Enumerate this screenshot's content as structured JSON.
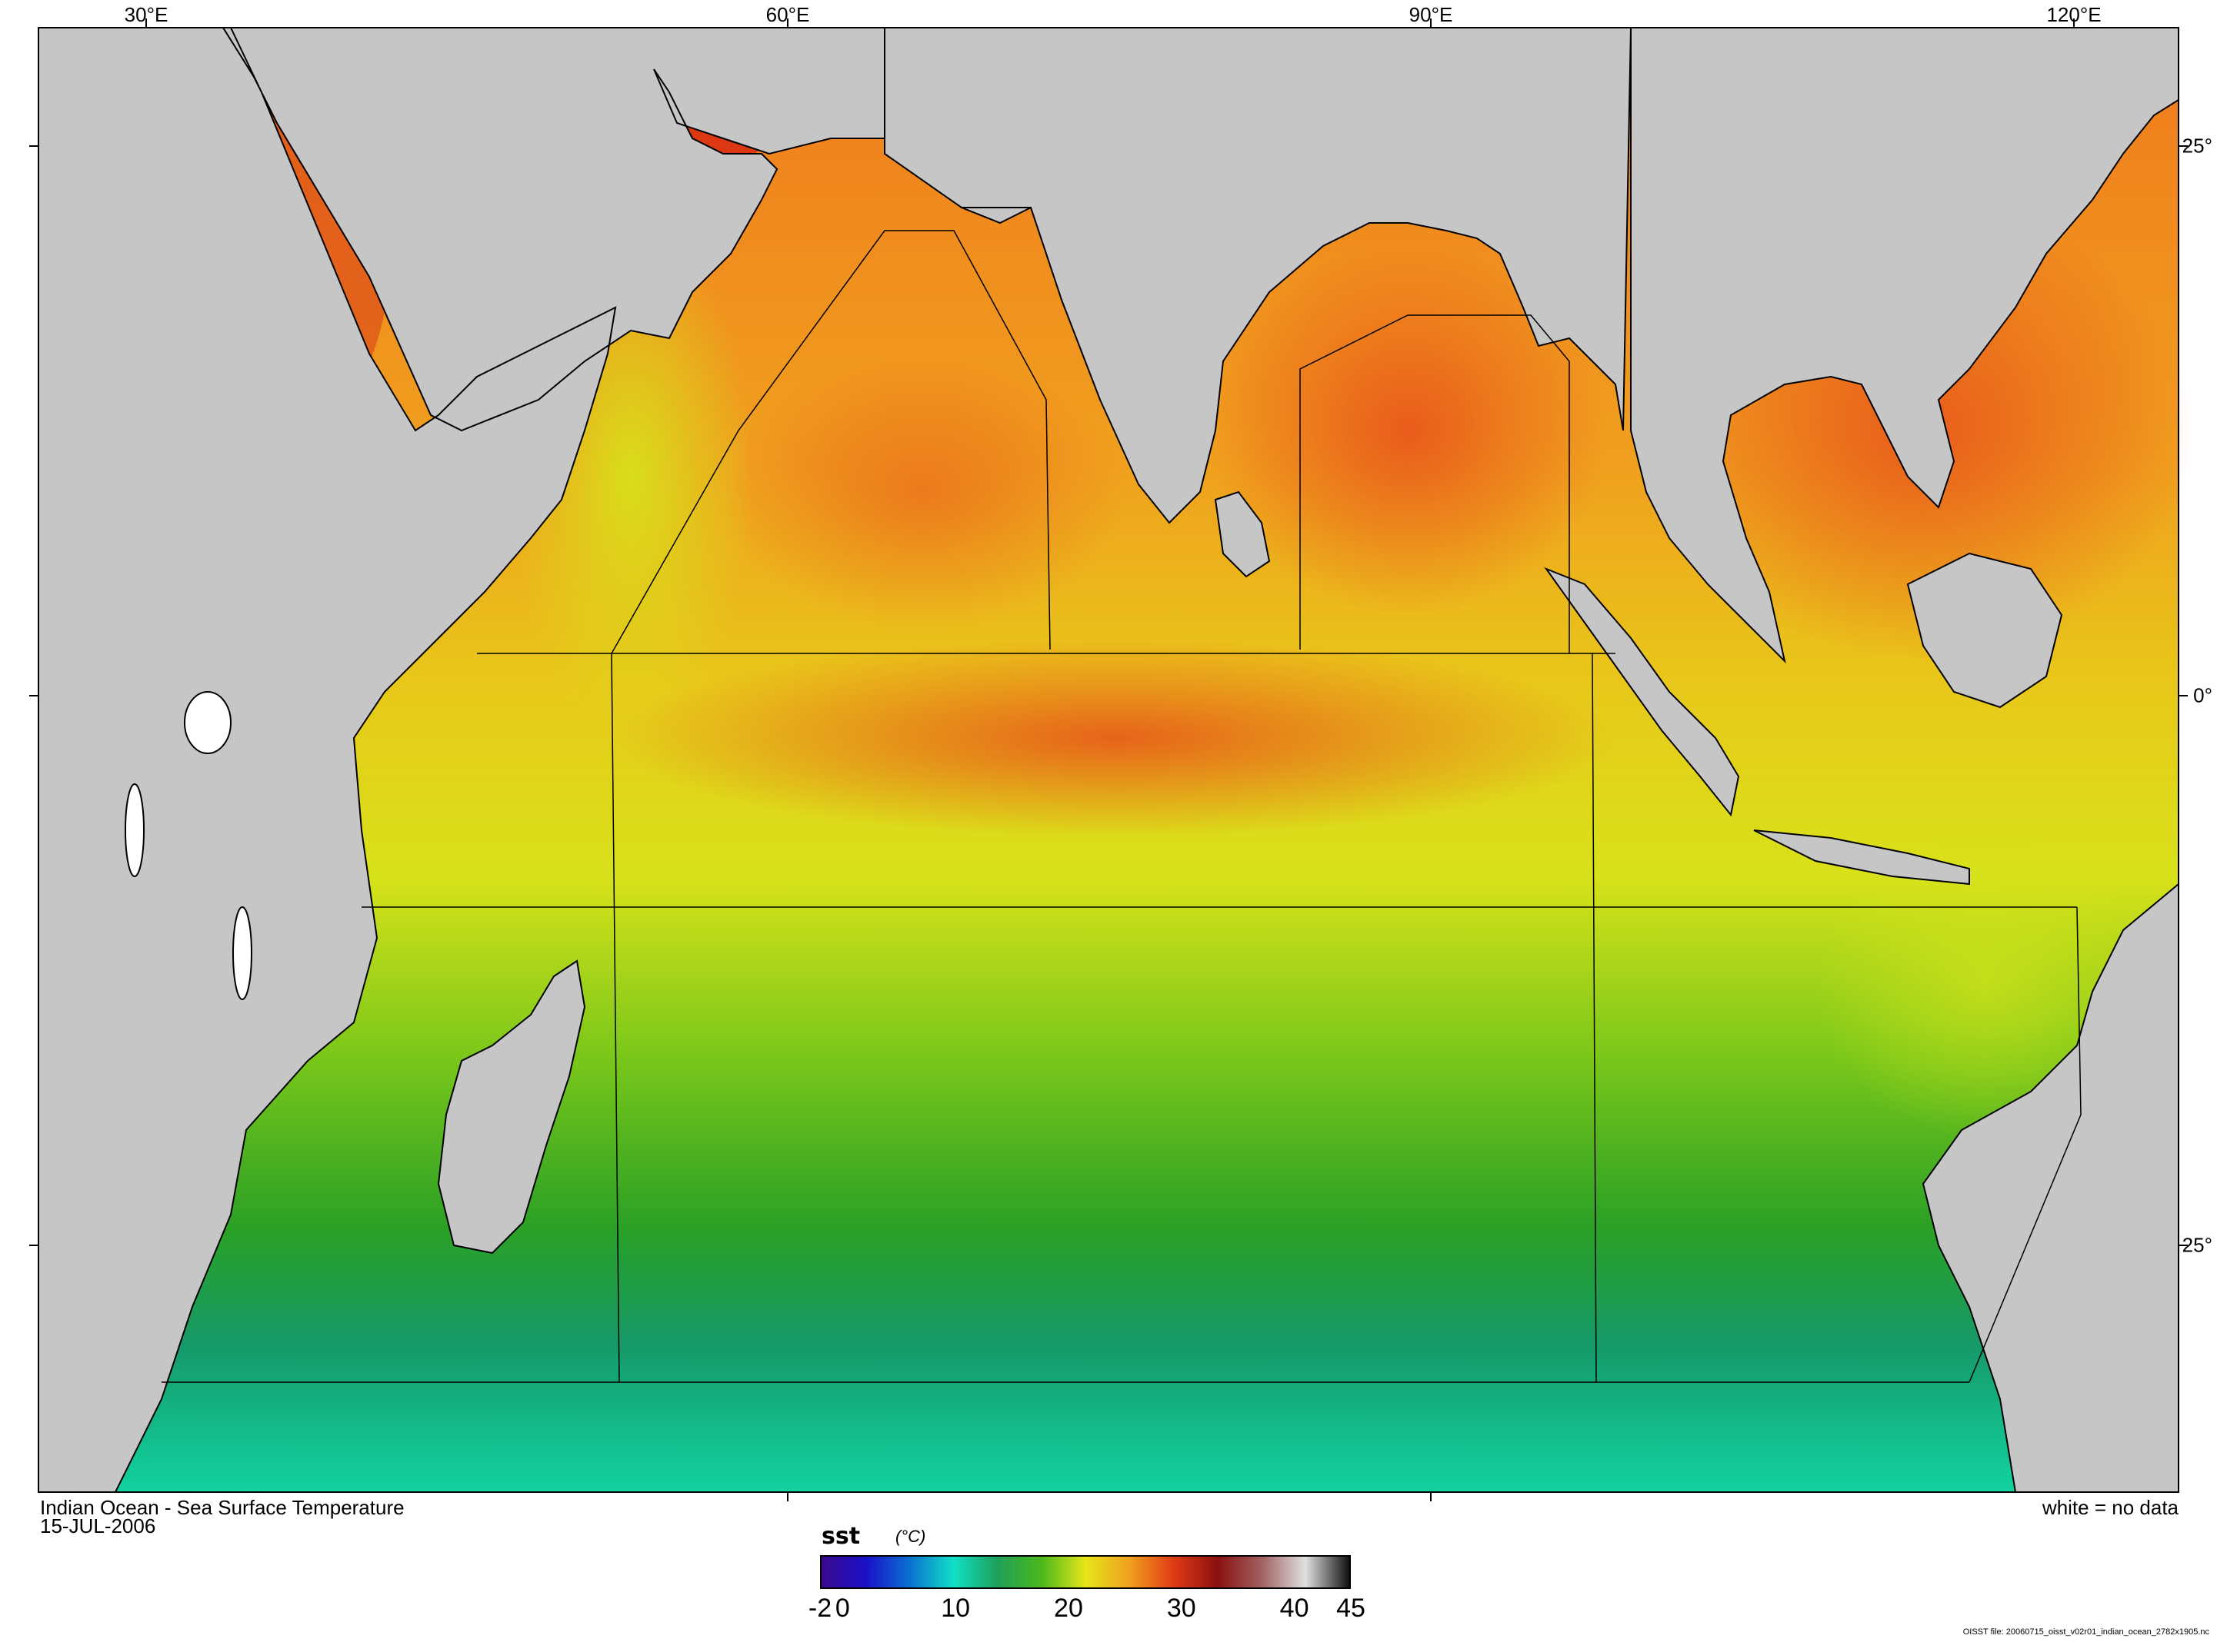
{
  "map": {
    "title": "Indian Ocean - Sea Surface Temperature",
    "date": "15-JUL-2006",
    "no_data_note": "white = no data",
    "source_note": "OISST file: 20060715_oisst_v02r01_indian_ocean_2782x1905.nc",
    "lon_labels": [
      "30°E",
      "60°E",
      "90°E",
      "120°E"
    ],
    "lat_labels": [
      "25°",
      "0°",
      "25°"
    ],
    "colors": {
      "land": "#c6c6c6",
      "no_data": "#ffffff",
      "coast": "#000000"
    }
  },
  "colorbar": {
    "variable": "sst",
    "unit": "(°C)",
    "tick_labels": [
      "-2",
      "0",
      "10",
      "20",
      "30",
      "40",
      "45"
    ],
    "range": [
      -2,
      45
    ],
    "stops": [
      "#3a0a8c",
      "#1a10c8",
      "#0a70d0",
      "#10e0c8",
      "#1fa05a",
      "#4ab81a",
      "#e6e61a",
      "#f0a01e",
      "#e03c14",
      "#8c1010",
      "#a06060",
      "#e0e0e0",
      "#111111"
    ]
  }
}
